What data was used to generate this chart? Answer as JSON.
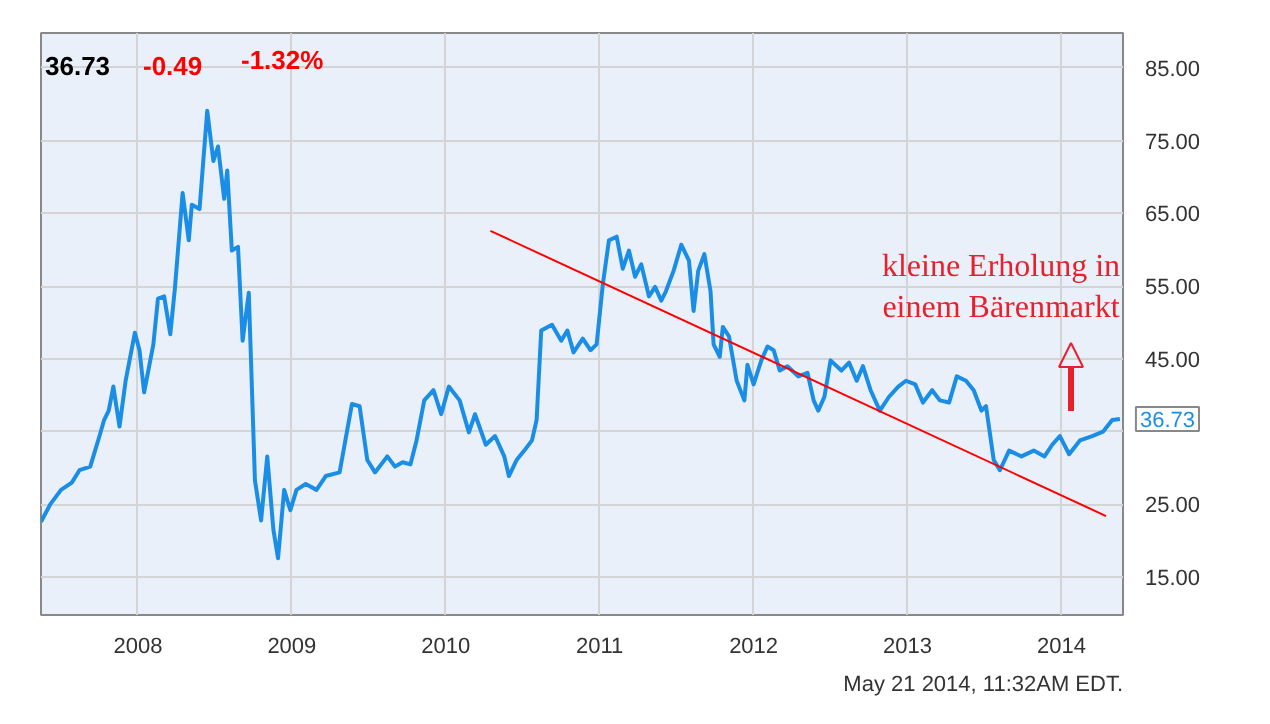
{
  "chart_data": {
    "type": "line",
    "xlim": [
      2007.37,
      2014.4
    ],
    "ylim": [
      9.8,
      89.8
    ],
    "xticks": [
      {
        "value": 2008,
        "label": "2008"
      },
      {
        "value": 2009,
        "label": "2009"
      },
      {
        "value": 2010,
        "label": "2010"
      },
      {
        "value": 2011,
        "label": "2011"
      },
      {
        "value": 2012,
        "label": "2012"
      },
      {
        "value": 2013,
        "label": "2013"
      },
      {
        "value": 2014,
        "label": "2014"
      }
    ],
    "yticks": [
      {
        "value": 15,
        "label": "15.00"
      },
      {
        "value": 25,
        "label": "25.00"
      },
      {
        "value": 35,
        "label": null
      },
      {
        "value": 45,
        "label": "45.00"
      },
      {
        "value": 55,
        "label": "55.00"
      },
      {
        "value": 65,
        "label": "65.00"
      },
      {
        "value": 75,
        "label": "75.00"
      },
      {
        "value": 85,
        "label": "85.00"
      }
    ],
    "grid": true,
    "marker": "none",
    "line_style": "solid",
    "series": [
      {
        "color": "#1a8ee6",
        "x": [
          2007.37,
          2007.43,
          2007.5,
          2007.57,
          2007.62,
          2007.69,
          2007.75,
          2007.78,
          2007.81,
          2007.84,
          2007.88,
          2007.92,
          2007.94,
          2007.98,
          2008.01,
          2008.04,
          2008.1,
          2008.13,
          2008.17,
          2008.21,
          2008.24,
          2008.29,
          2008.33,
          2008.35,
          2008.4,
          2008.45,
          2008.49,
          2008.52,
          2008.56,
          2008.58,
          2008.61,
          2008.65,
          2008.68,
          2008.72,
          2008.76,
          2008.8,
          2008.84,
          2008.88,
          2008.91,
          2008.95,
          2008.99,
          2009.03,
          2009.09,
          2009.16,
          2009.22,
          2009.31,
          2009.39,
          2009.44,
          2009.49,
          2009.54,
          2009.62,
          2009.67,
          2009.72,
          2009.77,
          2009.81,
          2009.86,
          2009.92,
          2009.97,
          2010.02,
          2010.09,
          2010.15,
          2010.19,
          2010.26,
          2010.32,
          2010.38,
          2010.41,
          2010.46,
          2010.51,
          2010.56,
          2010.59,
          2010.62,
          2010.69,
          2010.75,
          2010.79,
          2010.83,
          2010.89,
          2010.94,
          2010.98,
          2011.02,
          2011.06,
          2011.11,
          2011.15,
          2011.19,
          2011.23,
          2011.27,
          2011.32,
          2011.36,
          2011.4,
          2011.43,
          2011.48,
          2011.53,
          2011.58,
          2011.61,
          2011.64,
          2011.68,
          2011.72,
          2011.74,
          2011.78,
          2011.8,
          2011.84,
          2011.89,
          2011.94,
          2011.96,
          2012.0,
          2012.05,
          2012.09,
          2012.13,
          2012.17,
          2012.22,
          2012.29,
          2012.35,
          2012.39,
          2012.42,
          2012.46,
          2012.5,
          2012.57,
          2012.62,
          2012.67,
          2012.71,
          2012.76,
          2012.82,
          2012.88,
          2012.94,
          2012.99,
          2013.05,
          2013.1,
          2013.16,
          2013.21,
          2013.27,
          2013.32,
          2013.38,
          2013.43,
          2013.48,
          2013.51,
          2013.56,
          2013.6,
          2013.66,
          2013.74,
          2013.82,
          2013.89,
          2013.94,
          2013.99,
          2014.05,
          2014.12,
          2014.2,
          2014.27,
          2014.33,
          2014.38
        ],
        "values": [
          22.6,
          25.0,
          27.0,
          28.0,
          29.7,
          30.2,
          34.4,
          36.6,
          37.9,
          41.2,
          35.7,
          42.0,
          44.2,
          48.6,
          46.2,
          40.4,
          47.0,
          53.3,
          53.6,
          48.4,
          54.7,
          67.8,
          61.3,
          66.2,
          65.6,
          79.1,
          72.2,
          74.2,
          67.0,
          70.9,
          59.9,
          60.4,
          47.5,
          54.1,
          28.3,
          22.8,
          31.6,
          21.5,
          17.6,
          27.0,
          24.2,
          27.0,
          27.8,
          27.0,
          28.9,
          29.4,
          38.8,
          38.5,
          31.1,
          29.4,
          31.6,
          30.2,
          30.8,
          30.5,
          33.8,
          39.3,
          40.7,
          37.4,
          41.2,
          39.3,
          34.9,
          37.4,
          33.2,
          34.4,
          31.6,
          28.9,
          31.1,
          32.4,
          33.8,
          36.6,
          48.9,
          49.7,
          47.5,
          48.9,
          45.9,
          47.8,
          46.2,
          47.0,
          55.2,
          61.3,
          61.8,
          57.4,
          59.9,
          56.3,
          58.0,
          53.6,
          54.9,
          53.0,
          54.3,
          57.1,
          60.7,
          58.5,
          51.6,
          57.1,
          59.4,
          54.3,
          47.0,
          45.3,
          49.4,
          48.1,
          42.0,
          39.3,
          44.2,
          41.5,
          44.8,
          46.7,
          46.2,
          43.4,
          44.0,
          42.6,
          43.1,
          39.3,
          37.9,
          39.8,
          44.8,
          43.4,
          44.5,
          42.0,
          44.0,
          40.7,
          37.9,
          39.8,
          41.2,
          42.0,
          41.5,
          39.0,
          40.7,
          39.3,
          39.0,
          42.6,
          42.0,
          40.7,
          37.9,
          38.5,
          31.1,
          29.7,
          32.4,
          31.6,
          32.4,
          31.6,
          33.2,
          34.4,
          31.9,
          33.8,
          34.4,
          35.0,
          36.6,
          36.73
        ]
      },
      {
        "color": "#ff0000",
        "x": [
          2010.29,
          2014.29
        ],
        "values": [
          62.6,
          23.4
        ]
      }
    ],
    "annotations": [
      "36.73",
      "-0.49",
      "-1.32%",
      {
        "text": "36.73",
        "x": 2014.38,
        "y": 36.73
      },
      "kleine Erholung in\neinem Bärenmarkt",
      "May 21 2014, 11:32AM EDT."
    ]
  }
}
